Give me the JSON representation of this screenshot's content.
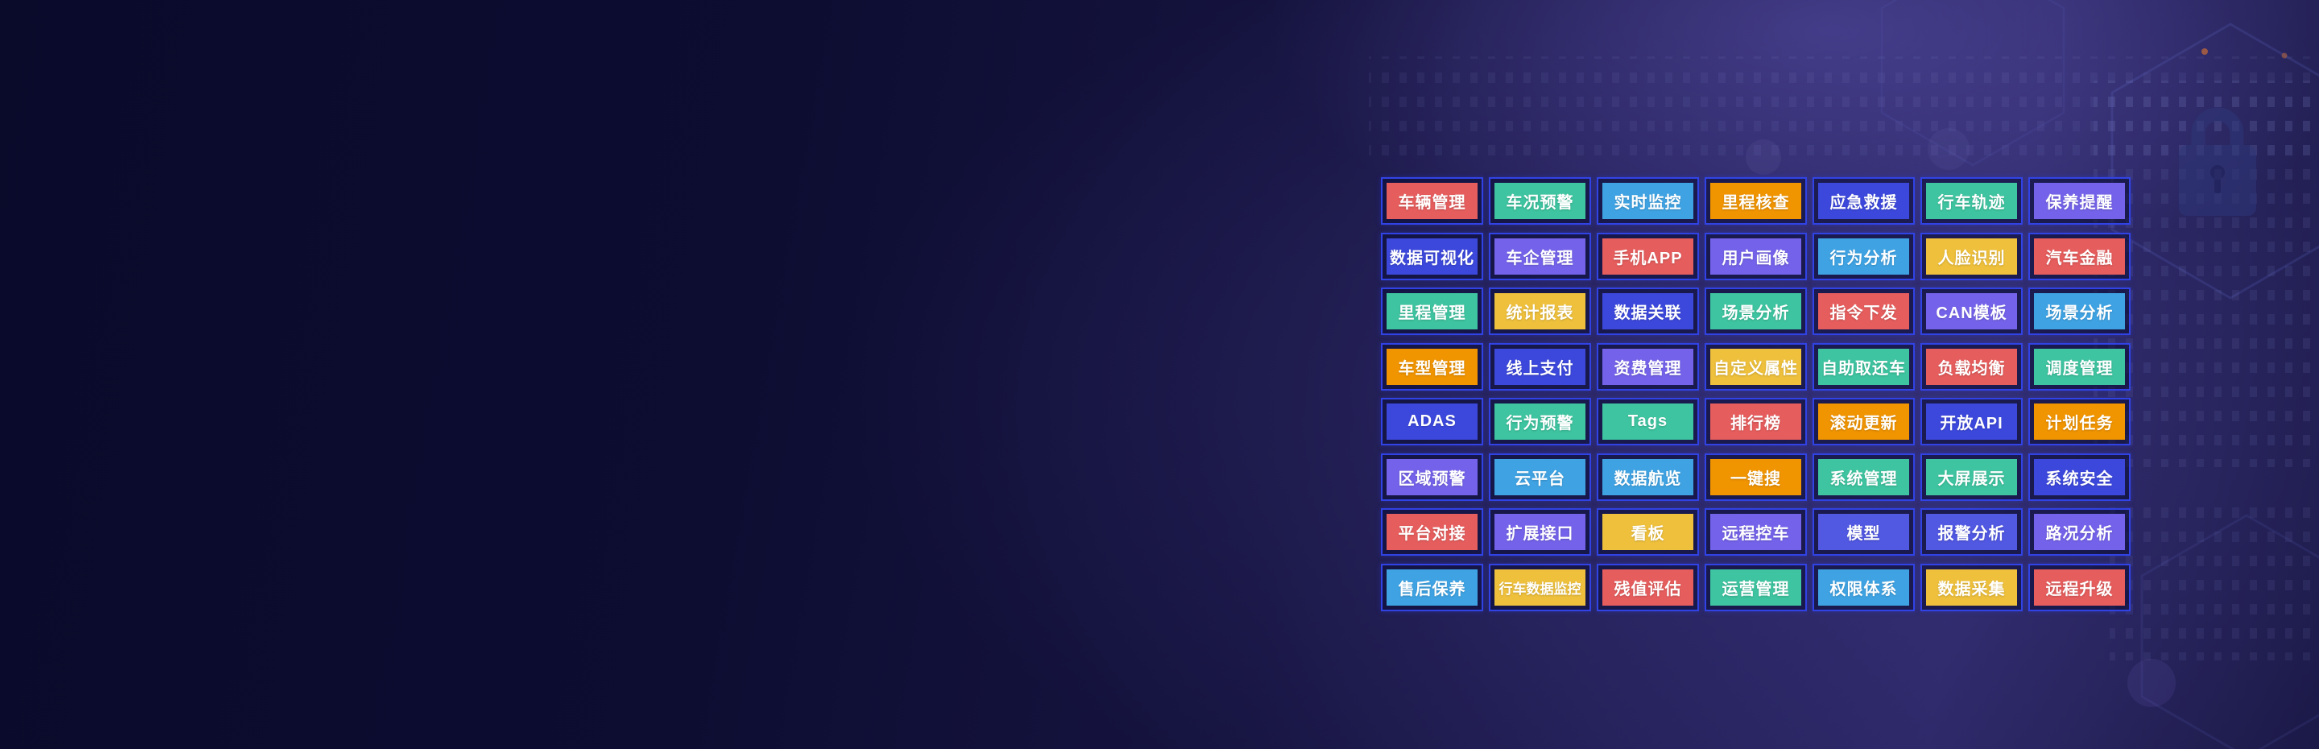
{
  "palette": {
    "red": "#e65d5d",
    "teal": "#3ec4a0",
    "blue": "#3fa3e3",
    "orange": "#f09400",
    "indigo": "#3c48dc",
    "indigo_light": "#5158e2",
    "purple": "#7463ea",
    "yellow": "#eec03c",
    "cell_border": "#3143e4",
    "background_dark": "#0a0a2b",
    "background_glow": "#3a3579"
  },
  "grid": {
    "rows": [
      {
        "cells": [
          {
            "label": "车辆管理",
            "color": "red"
          },
          {
            "label": "车况预警",
            "color": "teal"
          },
          {
            "label": "实时监控",
            "color": "blue"
          },
          {
            "label": "里程核查",
            "color": "orange"
          },
          {
            "label": "应急救援",
            "color": "indigo"
          },
          {
            "label": "行车轨迹",
            "color": "teal"
          },
          {
            "label": "保养提醒",
            "color": "purple"
          }
        ]
      },
      {
        "cells": [
          {
            "label": "数据可视化",
            "color": "indigo"
          },
          {
            "label": "车企管理",
            "color": "purple"
          },
          {
            "label": "手机APP",
            "color": "red"
          },
          {
            "label": "用户画像",
            "color": "purple"
          },
          {
            "label": "行为分析",
            "color": "blue"
          },
          {
            "label": "人脸识别",
            "color": "yellow"
          },
          {
            "label": "汽车金融",
            "color": "red"
          }
        ]
      },
      {
        "cells": [
          {
            "label": "里程管理",
            "color": "teal"
          },
          {
            "label": "统计报表",
            "color": "yellow"
          },
          {
            "label": "数据关联",
            "color": "indigo"
          },
          {
            "label": "场景分析",
            "color": "teal"
          },
          {
            "label": "指令下发",
            "color": "red"
          },
          {
            "label": "CAN模板",
            "color": "purple"
          },
          {
            "label": "场景分析",
            "color": "blue"
          }
        ]
      },
      {
        "cells": [
          {
            "label": "车型管理",
            "color": "orange"
          },
          {
            "label": "线上支付",
            "color": "indigo"
          },
          {
            "label": "资费管理",
            "color": "purple"
          },
          {
            "label": "自定义属性",
            "color": "yellow"
          },
          {
            "label": "自助取还车",
            "color": "teal"
          },
          {
            "label": "负载均衡",
            "color": "red"
          },
          {
            "label": "调度管理",
            "color": "teal"
          }
        ]
      },
      {
        "cells": [
          {
            "label": "ADAS",
            "color": "indigo"
          },
          {
            "label": "行为预警",
            "color": "teal"
          },
          {
            "label": "Tags",
            "color": "teal"
          },
          {
            "label": "排行榜",
            "color": "red"
          },
          {
            "label": "滚动更新",
            "color": "orange"
          },
          {
            "label": "开放API",
            "color": "indigo"
          },
          {
            "label": "计划任务",
            "color": "orange"
          }
        ]
      },
      {
        "cells": [
          {
            "label": "区域预警",
            "color": "purple"
          },
          {
            "label": "云平台",
            "color": "blue"
          },
          {
            "label": "数据航览",
            "color": "blue"
          },
          {
            "label": "一键搜",
            "color": "orange"
          },
          {
            "label": "系统管理",
            "color": "teal"
          },
          {
            "label": "大屏展示",
            "color": "teal"
          },
          {
            "label": "系统安全",
            "color": "indigo"
          }
        ]
      },
      {
        "cells": [
          {
            "label": "平台对接",
            "color": "red"
          },
          {
            "label": "扩展接口",
            "color": "purple"
          },
          {
            "label": "看板",
            "color": "yellow"
          },
          {
            "label": "远程控车",
            "color": "purple"
          },
          {
            "label": "模型",
            "color": "indigo_light"
          },
          {
            "label": "报警分析",
            "color": "indigo_light"
          },
          {
            "label": "路况分析",
            "color": "purple"
          }
        ]
      },
      {
        "cells": [
          {
            "label": "售后保养",
            "color": "blue"
          },
          {
            "label": "行车数据监控",
            "color": "yellow"
          },
          {
            "label": "残值评估",
            "color": "red"
          },
          {
            "label": "运营管理",
            "color": "teal"
          },
          {
            "label": "权限体系",
            "color": "blue"
          },
          {
            "label": "数据采集",
            "color": "yellow"
          },
          {
            "label": "远程升级",
            "color": "red"
          }
        ]
      }
    ]
  }
}
